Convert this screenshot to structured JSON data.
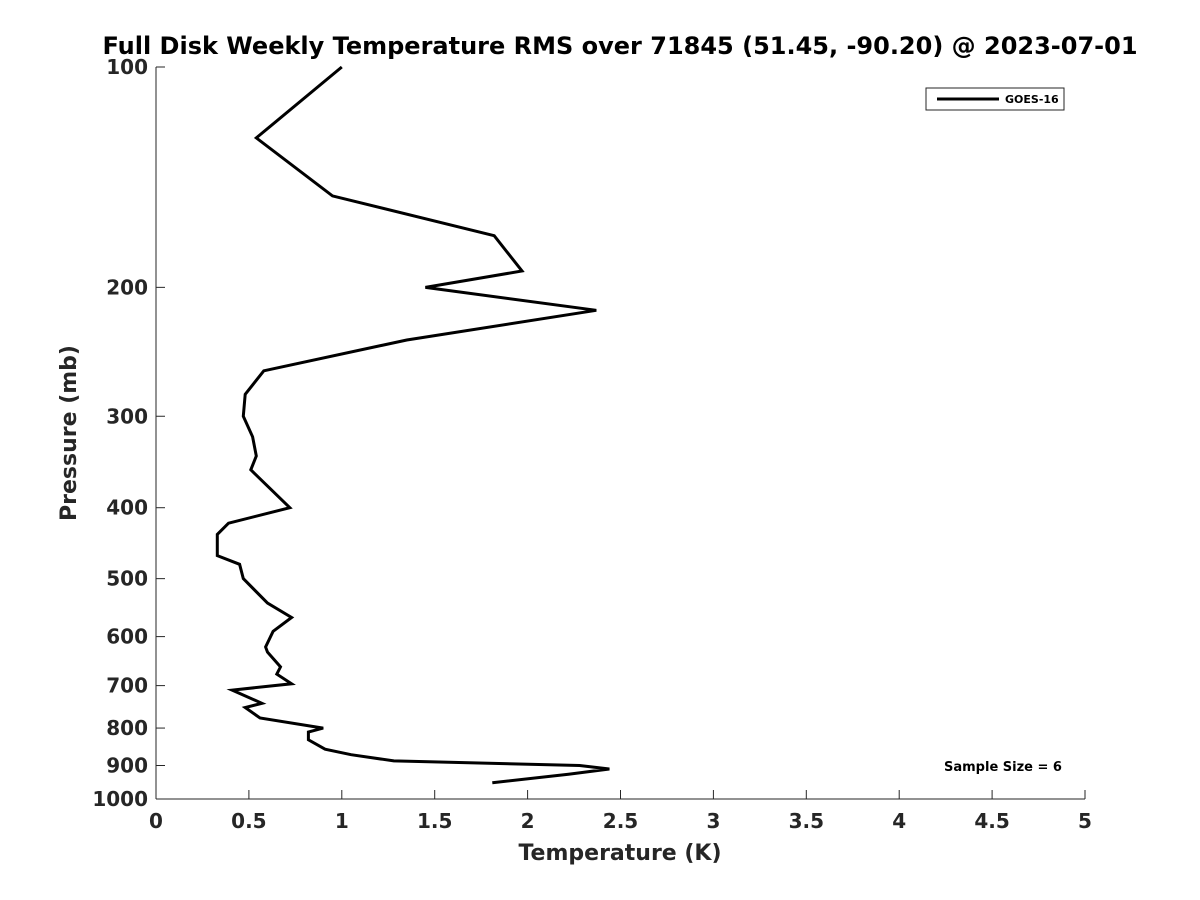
{
  "chart_data": {
    "type": "line",
    "title": "Full Disk Weekly Temperature RMS over 71845 (51.45, -90.20) @ 2023-07-01",
    "xlabel": "Temperature (K)",
    "ylabel": "Pressure (mb)",
    "xlim": [
      0,
      5
    ],
    "ylim": [
      1000,
      100
    ],
    "y_scale": "log",
    "y_reversed": true,
    "x_ticks": [
      "0",
      "0.5",
      "1",
      "1.5",
      "2",
      "2.5",
      "3",
      "3.5",
      "4",
      "4.5",
      "5"
    ],
    "x_tick_values": [
      0,
      0.5,
      1,
      1.5,
      2,
      2.5,
      3,
      3.5,
      4,
      4.5,
      5
    ],
    "y_ticks": [
      "100",
      "200",
      "300",
      "400",
      "500",
      "600",
      "700",
      "800",
      "900",
      "1000"
    ],
    "y_tick_values": [
      100,
      200,
      300,
      400,
      500,
      600,
      700,
      800,
      900,
      1000
    ],
    "grid": false,
    "legend_position": "top-right",
    "series": [
      {
        "name": "GOES-16",
        "color": "#000000",
        "points": [
          [
            1.0,
            100
          ],
          [
            0.54,
            125
          ],
          [
            0.95,
            150
          ],
          [
            1.82,
            170
          ],
          [
            1.97,
            190
          ],
          [
            1.45,
            200
          ],
          [
            2.37,
            215
          ],
          [
            1.35,
            236
          ],
          [
            0.58,
            260
          ],
          [
            0.48,
            280
          ],
          [
            0.47,
            300
          ],
          [
            0.52,
            320
          ],
          [
            0.54,
            340
          ],
          [
            0.51,
            355
          ],
          [
            0.72,
            400
          ],
          [
            0.39,
            420
          ],
          [
            0.33,
            435
          ],
          [
            0.33,
            465
          ],
          [
            0.45,
            478
          ],
          [
            0.47,
            500
          ],
          [
            0.6,
            540
          ],
          [
            0.73,
            565
          ],
          [
            0.63,
            590
          ],
          [
            0.59,
            620
          ],
          [
            0.6,
            630
          ],
          [
            0.67,
            660
          ],
          [
            0.65,
            675
          ],
          [
            0.73,
            696
          ],
          [
            0.41,
            710
          ],
          [
            0.57,
            740
          ],
          [
            0.48,
            750
          ],
          [
            0.56,
            775
          ],
          [
            0.9,
            800
          ],
          [
            0.82,
            810
          ],
          [
            0.82,
            830
          ],
          [
            0.91,
            855
          ],
          [
            1.05,
            870
          ],
          [
            1.28,
            887
          ],
          [
            2.28,
            900
          ],
          [
            2.44,
            910
          ],
          [
            2.22,
            925
          ],
          [
            1.81,
            950
          ]
        ]
      }
    ],
    "annotation": "Sample Size = 6"
  }
}
